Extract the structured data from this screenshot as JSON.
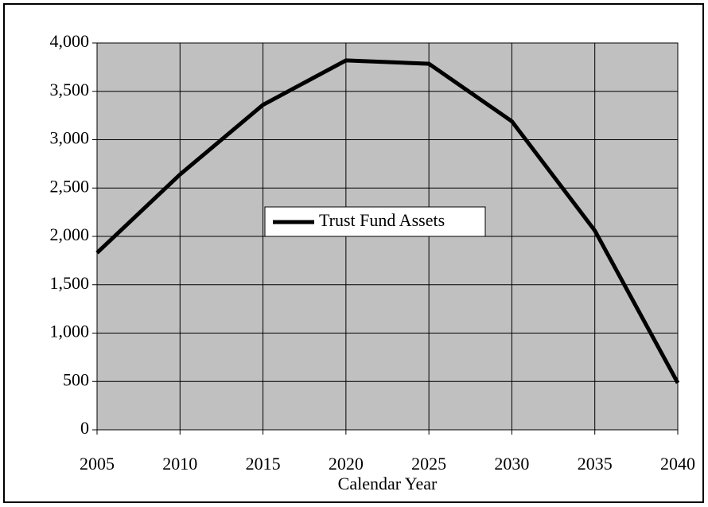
{
  "chart_data": {
    "type": "line",
    "x": [
      2005,
      2010,
      2015,
      2020,
      2025,
      2030,
      2035,
      2040
    ],
    "series": [
      {
        "name": "Trust Fund Assets",
        "color": "#000000",
        "values": [
          1830,
          2640,
          3360,
          3820,
          3785,
          3190,
          2060,
          485
        ]
      }
    ],
    "xlabel": "Calendar Year",
    "xlim": [
      2005,
      2040
    ],
    "xticks": [
      2005,
      2010,
      2015,
      2020,
      2025,
      2030,
      2035,
      2040
    ],
    "ylim": [
      0,
      4000
    ],
    "yticks": [
      0,
      500,
      {
        "value": 1000,
        "label": "1,000"
      },
      {
        "value": 1500,
        "label": "1,500"
      },
      {
        "value": 2000,
        "label": "2,000"
      },
      {
        "value": 2500,
        "label": "2,500"
      },
      {
        "value": 3000,
        "label": "3,000"
      },
      {
        "value": 3500,
        "label": "3,500"
      },
      {
        "value": 4000,
        "label": "4,000"
      }
    ],
    "grid": true,
    "plot_background": "#c0c0c0"
  }
}
